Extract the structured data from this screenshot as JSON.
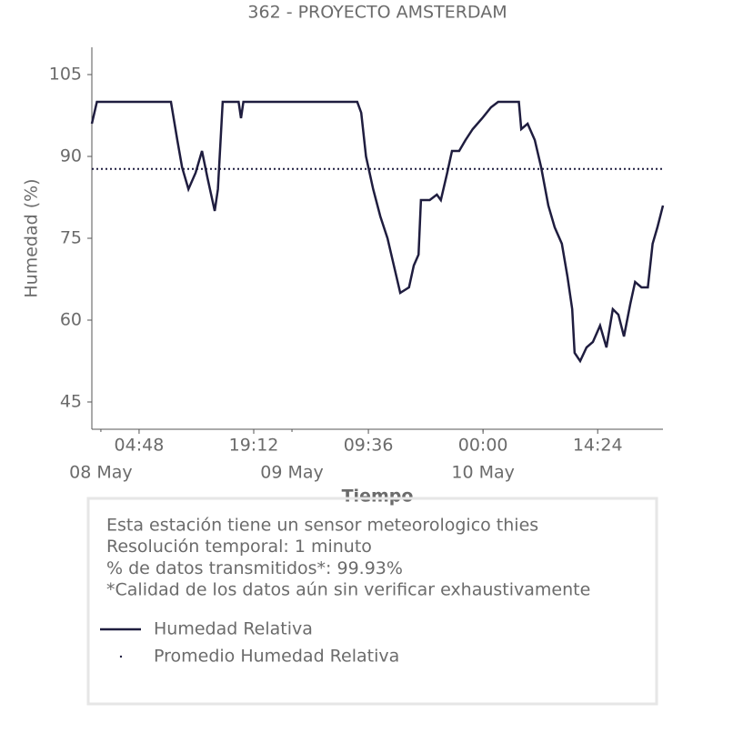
{
  "chart_data": {
    "type": "line",
    "title": "362 - PROYECTO AMSTERDAM",
    "ylabel": "Humedad (%)",
    "xlabel": "Tiempo",
    "ylim": [
      40,
      110
    ],
    "yticks": [
      45,
      60,
      75,
      90,
      105
    ],
    "xlim": [
      "07 May 22:52",
      "10 May 22:36"
    ],
    "xticks": [
      {
        "value": "08 May 04:48",
        "label": "04:48"
      },
      {
        "value": "08 May 19:12",
        "label": "19:12"
      },
      {
        "value": "09 May 09:36",
        "label": "09:36"
      },
      {
        "value": "10 May 00:00",
        "label": "00:00"
      },
      {
        "value": "10 May 14:24",
        "label": "14:24"
      }
    ],
    "xdate_ticks": [
      {
        "value": "08 May 00:00",
        "label": "08 May"
      },
      {
        "value": "09 May 00:00",
        "label": "09 May"
      },
      {
        "value": "10 May 00:00",
        "label": "10 May"
      }
    ],
    "x": [
      "07 May 22:52",
      "07 May 23:30",
      "08 May 08:48",
      "08 May 09:36",
      "08 May 10:12",
      "08 May 11:00",
      "08 May 11:54",
      "08 May 12:42",
      "08 May 13:24",
      "08 May 14:18",
      "08 May 14:42",
      "08 May 15:18",
      "08 May 17:18",
      "08 May 17:36",
      "08 May 17:54",
      "09 May 08:12",
      "09 May 08:42",
      "09 May 09:18",
      "09 May 10:12",
      "09 May 11:06",
      "09 May 12:00",
      "09 May 12:48",
      "09 May 13:36",
      "09 May 14:42",
      "09 May 15:18",
      "09 May 15:54",
      "09 May 16:12",
      "09 May 17:18",
      "09 May 18:12",
      "09 May 18:42",
      "09 May 19:30",
      "09 May 20:06",
      "09 May 21:00",
      "09 May 21:48",
      "09 May 22:42",
      "09 May 23:54",
      "10 May 01:00",
      "10 May 01:54",
      "10 May 04:30",
      "10 May 04:48",
      "10 May 05:36",
      "10 May 06:30",
      "10 May 07:18",
      "10 May 08:12",
      "10 May 09:00",
      "10 May 09:54",
      "10 May 10:36",
      "10 May 11:12",
      "10 May 11:30",
      "10 May 12:12",
      "10 May 13:00",
      "10 May 13:48",
      "10 May 14:42",
      "10 May 15:30",
      "10 May 16:18",
      "10 May 17:00",
      "10 May 17:42",
      "10 May 18:30",
      "10 May 19:06",
      "10 May 19:54",
      "10 May 20:42",
      "10 May 21:18",
      "10 May 21:54",
      "10 May 22:36"
    ],
    "series": [
      {
        "name": "Humedad Relativa",
        "color": "#1f1d3f",
        "values": [
          96,
          100,
          100,
          93,
          88,
          84,
          87,
          91,
          86,
          80,
          84,
          100,
          100,
          97,
          100,
          100,
          98,
          90,
          84,
          79,
          75,
          70,
          65,
          66,
          70,
          72,
          82,
          82,
          83,
          82,
          87,
          91,
          91,
          93,
          95,
          97,
          99,
          100,
          100,
          95,
          96,
          93,
          88,
          81,
          77,
          74,
          68,
          62,
          54,
          52.5,
          55,
          56,
          59,
          55,
          62,
          61,
          57,
          63,
          67,
          66,
          66,
          74,
          77,
          81
        ]
      }
    ],
    "reference_line": {
      "name": "Promedio Humedad Relativa",
      "value": 87.7,
      "color": "#1f1d3f",
      "style": "dotted"
    },
    "notes": [
      "Esta estación tiene un sensor meteorologico thies",
      "Resolución temporal: 1 minuto",
      "% de datos transmitidos*: 99.93%",
      "*Calidad de los datos aún sin verificar exhaustivamente"
    ]
  }
}
